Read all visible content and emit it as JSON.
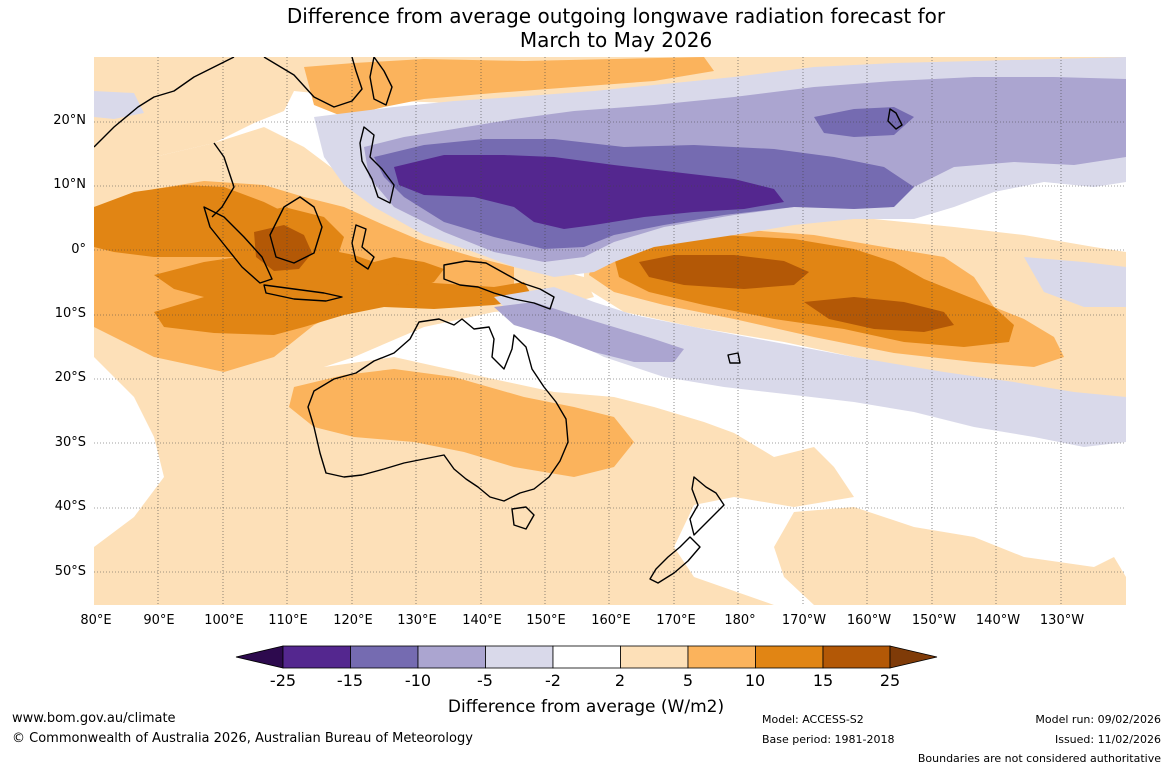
{
  "title": {
    "line1": "Difference from average outgoing longwave radiation forecast for",
    "line2": "March to May 2026"
  },
  "latitude_labels": [
    "20°N",
    "10°N",
    "0°",
    "10°S",
    "20°S",
    "30°S",
    "40°S",
    "50°S"
  ],
  "longitude_labels": [
    "80°E",
    "90°E",
    "100°E",
    "110°E",
    "120°E",
    "130°E",
    "140°E",
    "150°E",
    "160°E",
    "170°E",
    "180°",
    "170°W",
    "160°W",
    "150°W",
    "140°W",
    "130°W"
  ],
  "colorbar": {
    "title": "Difference from average (W/m2)",
    "ticks": [
      "-25",
      "-15",
      "-10",
      "-5",
      "-2",
      "2",
      "5",
      "10",
      "15",
      "25"
    ],
    "colors": {
      "below_min": "#2d0a4e",
      "m25_m15": "#54278f",
      "m15_m10": "#756bb1",
      "m10_m5": "#aba5d0",
      "m5_m2": "#d9d9ea",
      "m2_p2": "#ffffff",
      "p2_p5": "#fde0b8",
      "p5_p10": "#fbb35c",
      "p10_p15": "#e18514",
      "p15_p25": "#b35806",
      "above_max": "#7f3b08"
    }
  },
  "footer": {
    "website": "www.bom.gov.au/climate",
    "copyright": "© Commonwealth of Australia 2026, Australian Bureau of Meteorology",
    "model": "Model: ACCESS-S2",
    "base_period": "Base period: 1981-2018",
    "model_run": "Model run: 09/02/2026",
    "issued": "Issued: 11/02/2026",
    "disclaimer": "Boundaries are not considered authoritative"
  }
}
